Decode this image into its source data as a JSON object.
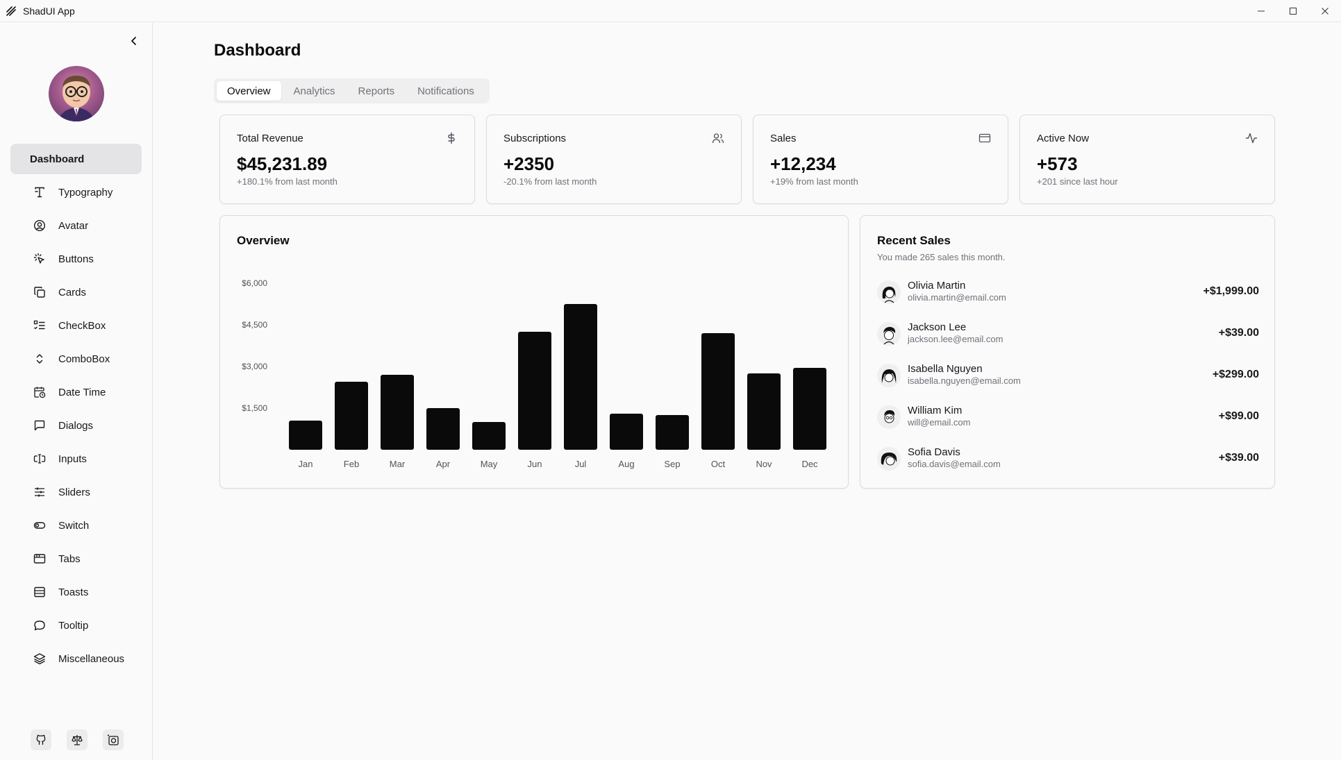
{
  "window": {
    "title": "ShadUI App"
  },
  "sidebar": {
    "items": [
      {
        "label": "Dashboard",
        "icon": "dashboard",
        "active": true
      },
      {
        "label": "Typography",
        "icon": "typography-icon"
      },
      {
        "label": "Avatar",
        "icon": "avatar-icon"
      },
      {
        "label": "Buttons",
        "icon": "pointer-icon"
      },
      {
        "label": "Cards",
        "icon": "cards-icon"
      },
      {
        "label": "CheckBox",
        "icon": "checklist-icon"
      },
      {
        "label": "ComboBox",
        "icon": "chevrons-up-down-icon"
      },
      {
        "label": "Date Time",
        "icon": "calendar-clock-icon"
      },
      {
        "label": "Dialogs",
        "icon": "message-square-icon"
      },
      {
        "label": "Inputs",
        "icon": "text-cursor-input-icon"
      },
      {
        "label": "Sliders",
        "icon": "sliders-icon"
      },
      {
        "label": "Switch",
        "icon": "toggle-icon"
      },
      {
        "label": "Tabs",
        "icon": "app-window-icon"
      },
      {
        "label": "Toasts",
        "icon": "rows-icon"
      },
      {
        "label": "Tooltip",
        "icon": "message-circle-icon"
      },
      {
        "label": "Miscellaneous",
        "icon": "layers-icon"
      }
    ],
    "footer_icons": [
      "github-icon",
      "scale-icon",
      "theme-icon"
    ]
  },
  "main": {
    "title": "Dashboard",
    "tabs": [
      {
        "label": "Overview",
        "active": true
      },
      {
        "label": "Analytics"
      },
      {
        "label": "Reports"
      },
      {
        "label": "Notifications"
      }
    ],
    "stats": [
      {
        "label": "Total Revenue",
        "value": "$45,231.89",
        "note": "+180.1% from last month",
        "icon": "dollar-icon"
      },
      {
        "label": "Subscriptions",
        "value": "+2350",
        "note": "-20.1% from last month",
        "icon": "users-icon"
      },
      {
        "label": "Sales",
        "value": "+12,234",
        "note": "+19% from last month",
        "icon": "credit-card-icon"
      },
      {
        "label": "Active Now",
        "value": "+573",
        "note": "+201 since last hour",
        "icon": "activity-icon"
      }
    ],
    "overview": {
      "title": "Overview"
    },
    "recent_sales": {
      "title": "Recent Sales",
      "subtitle": "You made 265 sales this month.",
      "items": [
        {
          "name": "Olivia Martin",
          "email": "olivia.martin@email.com",
          "amount": "+$1,999.00"
        },
        {
          "name": "Jackson Lee",
          "email": "jackson.lee@email.com",
          "amount": "+$39.00"
        },
        {
          "name": "Isabella Nguyen",
          "email": "isabella.nguyen@email.com",
          "amount": "+$299.00"
        },
        {
          "name": "William Kim",
          "email": "will@email.com",
          "amount": "+$99.00"
        },
        {
          "name": "Sofia Davis",
          "email": "sofia.davis@email.com",
          "amount": "+$39.00"
        }
      ]
    }
  },
  "chart_data": {
    "type": "bar",
    "categories": [
      "Jan",
      "Feb",
      "Mar",
      "Apr",
      "May",
      "Jun",
      "Jul",
      "Aug",
      "Sep",
      "Oct",
      "Nov",
      "Dec"
    ],
    "values": [
      1050,
      2450,
      2700,
      1500,
      1000,
      4250,
      5250,
      1300,
      1250,
      4200,
      2750,
      2950
    ],
    "yticks": [
      "$1,500",
      "$3,000",
      "$4,500",
      "$6,000"
    ],
    "ytick_values": [
      1500,
      3000,
      4500,
      6000
    ],
    "ylim": [
      0,
      6000
    ],
    "bar_color": "#0a0a0a"
  }
}
